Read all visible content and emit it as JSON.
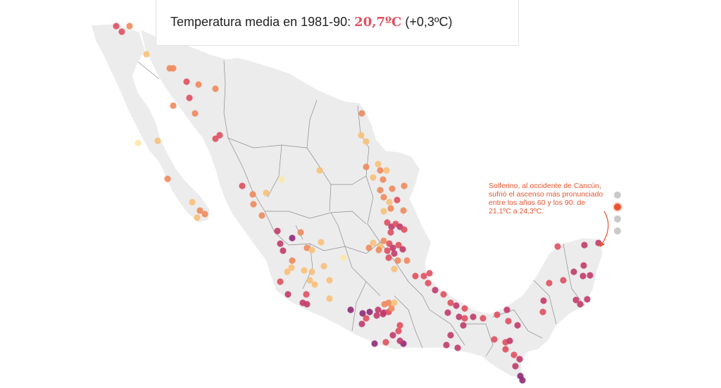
{
  "header": {
    "label": "Temperatura media en 1981-90: ",
    "value": "20,7ºC",
    "delta": " (+0,3ºC)"
  },
  "annotation": {
    "text": "Solferino, al occidente de Cancún, sufrió el ascenso más pronunciado entre los años 60 y los 90: de 21,1ºC a 24,3ºC."
  },
  "steps": {
    "count": 4,
    "active": 1
  },
  "colors": {
    "land": "#ececec",
    "border": "#8c8c8c",
    "accent": "#e8542f",
    "scale": [
      "#fde8a8",
      "#f9c07a",
      "#f08a5d",
      "#e0505f",
      "#c23b6c",
      "#8f2a78"
    ]
  }
}
